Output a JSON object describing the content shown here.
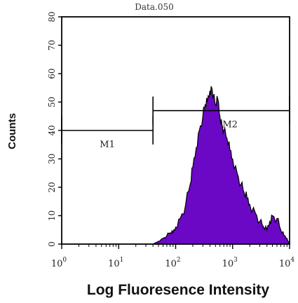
{
  "chart_data": {
    "type": "area",
    "title": "Data.050",
    "xlabel": "Log Fluoresence Intensity",
    "ylabel": "Counts",
    "x_scale": "log",
    "xlim": [
      1,
      10000
    ],
    "ylim": [
      0,
      80
    ],
    "x_ticks": [
      {
        "base": "10",
        "exp": "0"
      },
      {
        "base": "10",
        "exp": "1"
      },
      {
        "base": "10",
        "exp": "2"
      },
      {
        "base": "10",
        "exp": "3"
      },
      {
        "base": "10",
        "exp": "4"
      }
    ],
    "y_ticks": [
      "0",
      "10",
      "20",
      "30",
      "40",
      "50",
      "60",
      "70",
      "80"
    ],
    "fill_color": "#6a08c6",
    "series": [
      {
        "x": [
          40,
          50,
          60,
          70,
          80,
          90,
          100,
          120,
          150,
          180,
          200,
          230,
          260,
          300,
          330,
          360,
          400,
          430,
          460,
          500,
          550,
          600,
          650,
          700,
          800,
          900,
          1000,
          1200,
          1400,
          1600,
          1800,
          2000,
          2500,
          3000,
          3500,
          4000,
          4500,
          5000,
          6000,
          7000,
          8000,
          9000,
          10000
        ],
        "y": [
          0,
          1,
          2,
          3,
          4,
          4,
          6,
          9,
          14,
          21,
          27,
          34,
          40,
          45,
          49,
          50,
          54,
          55,
          52,
          49,
          51,
          45,
          42,
          40,
          37,
          33,
          30,
          25,
          21,
          18,
          16,
          14,
          11,
          8,
          6,
          5,
          8,
          10,
          9,
          5,
          3,
          2,
          0
        ]
      }
    ],
    "markers": [
      {
        "label": "M1",
        "start": 1,
        "end": 40,
        "y": 40
      },
      {
        "label": "M2",
        "start": 40,
        "end": 10000,
        "y": 47
      }
    ]
  }
}
